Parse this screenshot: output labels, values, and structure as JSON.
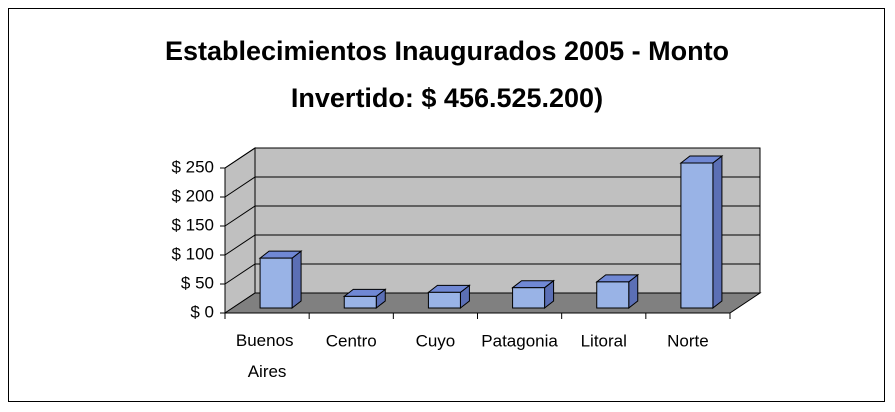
{
  "chart_data": {
    "type": "bar3d",
    "title": "Establecimientos Inaugurados 2005 - Monto Invertido: $ 456.525.200)",
    "categories": [
      "Buenos Aires",
      "Centro",
      "Cuyo",
      "Patagonia",
      "Litoral",
      "Norte"
    ],
    "values": [
      86,
      20,
      27,
      35,
      45,
      250
    ],
    "color": "#99b3e6",
    "ylim": [
      0,
      250
    ],
    "yticks": [
      {
        "value": 0,
        "label": "$ 0"
      },
      {
        "value": 50,
        "label": "$ 50"
      },
      {
        "value": 100,
        "label": "$ 100"
      },
      {
        "value": 150,
        "label": "$ 150"
      },
      {
        "value": 200,
        "label": "$ 200"
      },
      {
        "value": 250,
        "label": "$ 250"
      }
    ],
    "grid": true
  }
}
